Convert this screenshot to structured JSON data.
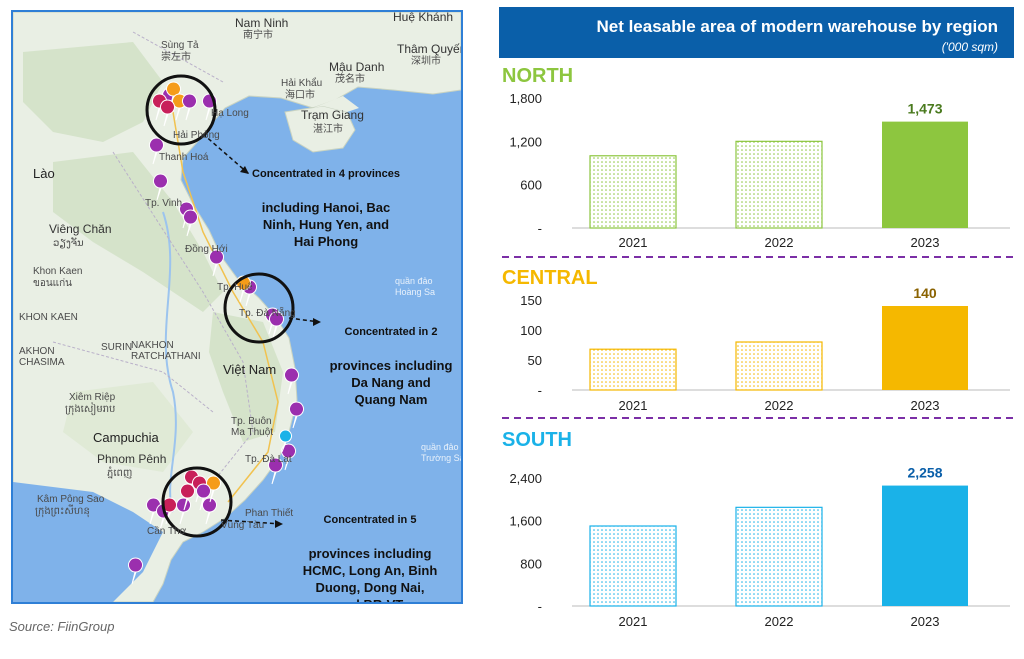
{
  "source": "Source: FiinGroup",
  "header": {
    "title": "Net leasable area of modern warehouse by region",
    "unit": "('000 sqm)"
  },
  "colors": {
    "header_bg": "#0a5fa9",
    "north": "#8dc63f",
    "central": "#f5b800",
    "south": "#1ab2e8",
    "divider": "#7b2fa6",
    "map_border": "#2f7fd6"
  },
  "map": {
    "places": {
      "nam_ninh": "Nam Ninh",
      "nam_ninh_cn": "南宁市",
      "sung_tao": "Sùng Tả",
      "sung_tao_cn": "崇左市",
      "mau_danh": "Mậu Danh",
      "mau_danh_cn": "茂名市",
      "tham_quyen": "Thâm Quyến",
      "tham_quyen_cn": "深圳市",
      "hue_khanh": "Huệ Khánh",
      "hai_khau": "Hải Khẩu",
      "hai_khau_cn": "海口市",
      "tram_giang": "Trạm Giang",
      "tram_giang_cn": "湛江市",
      "ha_long": "Hạ Long",
      "hai_phong": "Hải Phòng",
      "thanh_hoa": "Thanh Hoá",
      "lao": "Lào",
      "vinh": "Tp. Vinh",
      "vieng_chan": "Viêng Chăn",
      "vieng_chan_lao": "ວຽງຈັນ",
      "khon_kaen": "Khon Kaen",
      "khon_kaen_th": "ขอนแก่น",
      "dong_hoi": "Đồng Hới",
      "hue": "Tp. Huế",
      "quan_dao_hoang_sa": "quần đảo\nHoàng Sa",
      "da_nang": "Tp. Đà Nẵng",
      "khon_kaen2": "KHON KAEN",
      "surin": "SURIN",
      "akhon_ratchasima": "AKHON\nCHASIMA",
      "nakhon_ratchathani": "NAKHON\nRATCHATHANI",
      "viet_nam": "Việt Nam",
      "xiem_riep": "Xiêm Riệp",
      "xiem_riep_km": "ក្រុងសៀមរាប",
      "buon_ma_thuot": "Tp. Buôn\nMa Thuột",
      "campuchia": "Campuchia",
      "quan_dao_truong_sa": "quần đảo\nTrường Sa",
      "phnom_penh": "Phnom Pênh",
      "phnom_penh_km": "ភ្នំពេញ",
      "da_lat": "Tp. Đà Lạt",
      "kam_pong_sao": "Kâm Pông Sao",
      "kam_pong_sao_km": "ក្រុងព្រះសីហនុ",
      "phan_thiet": "Phan Thiết",
      "vung_tau": "Vũng Tàu",
      "can_tho": "Cần Thơ"
    },
    "callouts": {
      "north": {
        "first": "Concentrated in 4 provinces",
        "rest": "including Hanoi, Bac\nNinh, Hung Yen, and\nHai Phong"
      },
      "central": {
        "first": "Concentrated in 2",
        "rest": "provinces including\nDa Nang and\nQuang Nam"
      },
      "south": {
        "first": "Concentrated in 5",
        "rest": "provinces including\nHCMC, Long An, Binh\nDuong, Dong Nai,\nand BR-VT"
      }
    }
  },
  "chart_data": [
    {
      "type": "bar",
      "title": "NORTH",
      "categories": [
        "2021",
        "2022",
        "2023"
      ],
      "values": [
        1000,
        1200,
        1473
      ],
      "data_labels": [
        "",
        "",
        "1,473"
      ],
      "yticks": [
        0,
        600,
        1200,
        1800
      ],
      "ytick_labels": [
        "-",
        "600",
        "1,200",
        "1,800"
      ],
      "ylim": [
        0,
        1800
      ],
      "highlight_index": 2,
      "color": "#8dc63f",
      "pattern": "dots"
    },
    {
      "type": "bar",
      "title": "CENTRAL",
      "categories": [
        "2021",
        "2022",
        "2023"
      ],
      "values": [
        68,
        80,
        140
      ],
      "data_labels": [
        "",
        "",
        "140"
      ],
      "yticks": [
        0,
        50,
        100,
        150
      ],
      "ytick_labels": [
        "-",
        "50",
        "100",
        "150"
      ],
      "ylim": [
        0,
        150
      ],
      "highlight_index": 2,
      "color": "#f5b800",
      "pattern": "dots"
    },
    {
      "type": "bar",
      "title": "SOUTH",
      "categories": [
        "2021",
        "2022",
        "2023"
      ],
      "values": [
        1500,
        1850,
        2258
      ],
      "data_labels": [
        "",
        "",
        "2,258"
      ],
      "yticks": [
        0,
        800,
        1600,
        2400
      ],
      "ytick_labels": [
        "-",
        "800",
        "1,600",
        "2,400"
      ],
      "ylim": [
        0,
        2400
      ],
      "highlight_index": 2,
      "color": "#1ab2e8",
      "pattern": "dots"
    }
  ]
}
